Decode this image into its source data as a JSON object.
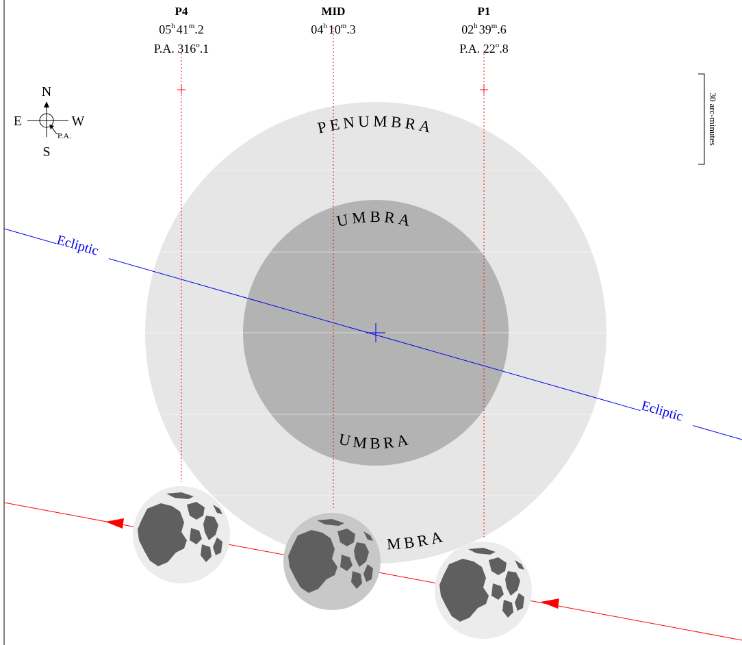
{
  "contacts": [
    {
      "key": "p4",
      "name": "P4",
      "time_h": "05",
      "time_m": "41",
      "time_frac": "2",
      "pa_prefix": "P.A. 316",
      "pa_frac": "1"
    },
    {
      "key": "mid",
      "name": "MID",
      "time_h": "04",
      "time_m": "10",
      "time_frac": "3"
    },
    {
      "key": "p1",
      "name": "P1",
      "time_h": "02",
      "time_m": "39",
      "time_frac": "6",
      "pa_prefix": "P.A. 22",
      "pa_frac": "8"
    }
  ],
  "units": {
    "hour": "h",
    "minute": "m",
    "degree": "o"
  },
  "compass": {
    "north": "N",
    "south": "S",
    "east": "E",
    "west": "W",
    "pa": "P.A."
  },
  "scale": {
    "label": "30 arc-minutes"
  },
  "labels": {
    "penumbra": "PENUMBRA",
    "umbra": "UMBRA",
    "ecliptic": "Ecliptic",
    "penumbra_bottom_partial": "MBRA"
  },
  "colors": {
    "penumbra": "#e6e6e6",
    "umbra": "#b3b3b3",
    "ecliptic": "#0000ee",
    "moon_path": "#ff0000",
    "moon_light": "#ececec",
    "moon_mid": "#c8c8c8",
    "maria": "#5f5f5f"
  }
}
